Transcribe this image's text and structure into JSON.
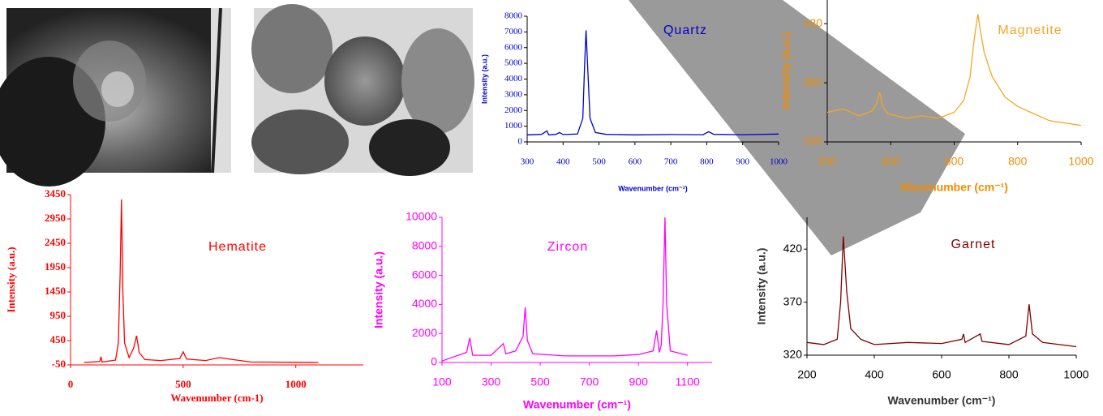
{
  "chart_data": [
    {
      "type": "line",
      "title": "Quartz",
      "x_label": "Wavenumber (cm⁻¹)",
      "y_label": "Intensity (a.u.)",
      "color": "#0000cc",
      "x": [
        300,
        340,
        355,
        360,
        380,
        390,
        400,
        440,
        455,
        460,
        464,
        468,
        475,
        490,
        520,
        600,
        700,
        790,
        805,
        820,
        900,
        1000
      ],
      "values": [
        450,
        480,
        700,
        450,
        480,
        600,
        470,
        500,
        1500,
        5000,
        7100,
        5000,
        1500,
        600,
        480,
        450,
        470,
        460,
        650,
        480,
        460,
        500
      ],
      "xlim": [
        300,
        1000
      ],
      "ylim": [
        0,
        8000
      ],
      "xticks": [
        300,
        400,
        500,
        600,
        700,
        800,
        900,
        1000
      ],
      "yticks": [
        0,
        1000,
        2000,
        3000,
        4000,
        5000,
        6000,
        7000,
        8000
      ]
    },
    {
      "type": "line",
      "title": "Magnetite",
      "x_label": "Wavenumber (cm⁻¹)",
      "y_label": "Intensity (a.u.)",
      "color": "#f5a623",
      "x": [
        200,
        250,
        300,
        340,
        355,
        365,
        375,
        390,
        450,
        500,
        550,
        600,
        630,
        650,
        660,
        670,
        675,
        682,
        695,
        720,
        760,
        800,
        900,
        1000
      ],
      "values": [
        355,
        358,
        352,
        356,
        362,
        372,
        360,
        354,
        350,
        352,
        350,
        355,
        365,
        385,
        410,
        430,
        438,
        425,
        405,
        385,
        368,
        360,
        348,
        344
      ],
      "xlim": [
        200,
        1000
      ],
      "ylim": [
        330,
        450
      ],
      "xticks": [
        200,
        400,
        600,
        800,
        1000
      ],
      "yticks": [
        330,
        380,
        430
      ]
    },
    {
      "type": "line",
      "title": "Hematite",
      "x_label": "Wavenumber (cm-1)",
      "y_label": "Intensity (a.u.)",
      "color": "#ff0000",
      "x": [
        60,
        130,
        135,
        140,
        200,
        212,
        220,
        226,
        232,
        240,
        260,
        280,
        293,
        305,
        330,
        400,
        485,
        500,
        515,
        600,
        660,
        720,
        800,
        1100
      ],
      "values": [
        0,
        20,
        120,
        10,
        50,
        400,
        1800,
        3350,
        1500,
        400,
        100,
        300,
        550,
        200,
        60,
        40,
        80,
        220,
        70,
        40,
        100,
        60,
        10,
        0
      ],
      "xlim": [
        0,
        1300
      ],
      "ylim": [
        -50,
        3450
      ],
      "xticks": [
        0,
        500,
        1000
      ],
      "yticks": [
        -50,
        450,
        950,
        1450,
        1950,
        2450,
        2950,
        3450
      ]
    },
    {
      "type": "line",
      "title": "Zircon",
      "x_label": "Wavenumber (cm⁻¹)",
      "y_label": "Intensity (a.u.)",
      "color": "#ff00ff",
      "x": [
        100,
        150,
        200,
        213,
        225,
        300,
        350,
        360,
        400,
        430,
        439,
        448,
        470,
        600,
        800,
        900,
        960,
        974,
        985,
        993,
        1000,
        1008,
        1015,
        1030,
        1100
      ],
      "values": [
        100,
        400,
        700,
        1700,
        500,
        500,
        1300,
        600,
        800,
        1800,
        3800,
        1500,
        600,
        450,
        450,
        550,
        800,
        2200,
        700,
        1200,
        4000,
        10000,
        4000,
        800,
        500
      ],
      "xlim": [
        100,
        1200
      ],
      "ylim": [
        0,
        10000
      ],
      "xticks": [
        100,
        300,
        500,
        700,
        900,
        1100
      ],
      "yticks": [
        0,
        2000,
        4000,
        6000,
        8000,
        10000
      ]
    },
    {
      "type": "line",
      "title": "Garnet",
      "x_label": "Wavenumber (cm⁻¹)",
      "y_label": "Intensity (a.u.)",
      "color": "#800000",
      "x": [
        200,
        250,
        290,
        300,
        308,
        318,
        330,
        360,
        400,
        500,
        600,
        660,
        665,
        670,
        715,
        720,
        800,
        850,
        860,
        870,
        900,
        1000
      ],
      "values": [
        332,
        330,
        335,
        370,
        432,
        380,
        345,
        335,
        330,
        332,
        331,
        335,
        340,
        332,
        340,
        333,
        330,
        338,
        368,
        340,
        332,
        328
      ],
      "xlim": [
        200,
        1000
      ],
      "ylim": [
        320,
        450
      ],
      "xticks": [
        200,
        400,
        600,
        800,
        1000
      ],
      "yticks": [
        320,
        370,
        420
      ]
    }
  ]
}
